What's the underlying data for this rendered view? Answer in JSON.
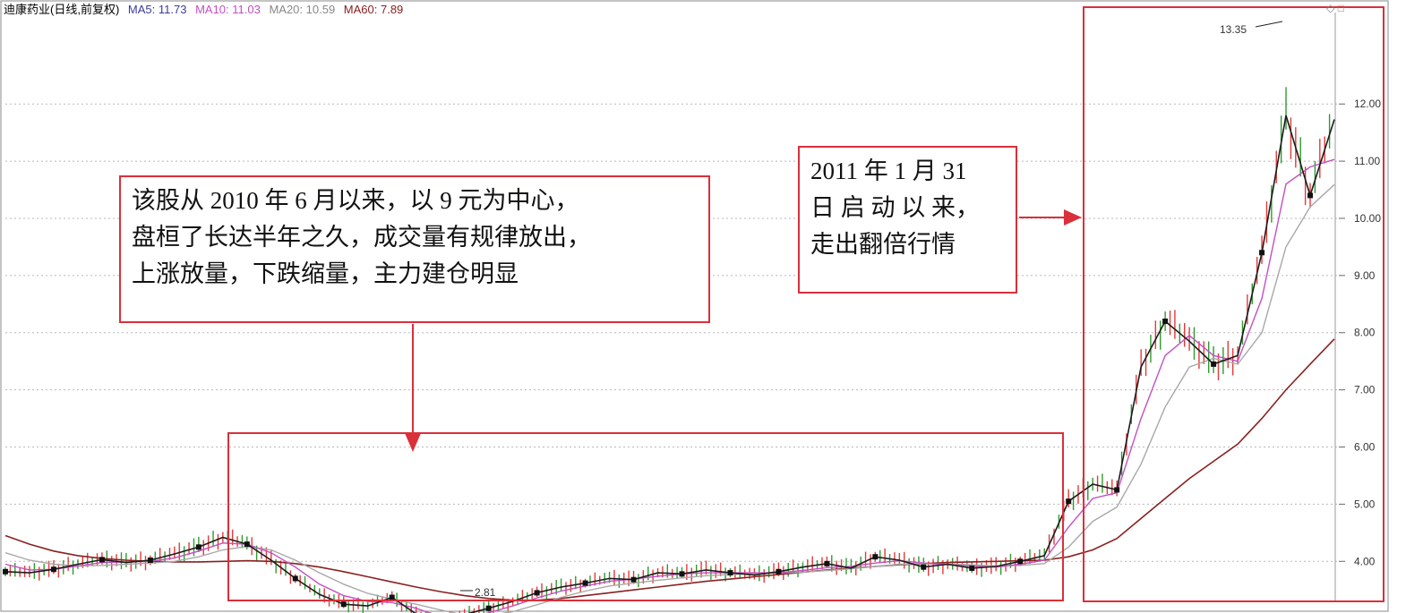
{
  "header": {
    "stock_title": "迪康药业(日线,前复权)",
    "ma5": "MA5: 11.73",
    "ma10": "MA10: 11.03",
    "ma20": "MA20: 10.59",
    "ma60": "MA60: 7.89"
  },
  "colors": {
    "ma5": "#1c1c1c",
    "ma10": "#c34fc3",
    "ma20": "#a8a8a8",
    "ma60": "#8a2020",
    "up": "#e23a3a",
    "down": "#2f9a2f",
    "annotation": "#d9303a"
  },
  "annotations": {
    "left_note": [
      "该股从 2010 年 6 月以来，以 9 元为中心，",
      "盘桓了长达半年之久，成交量有规律放出，",
      "上涨放量，下跌缩量，主力建仓明显"
    ],
    "right_note": [
      "2011 年 1 月 31",
      "日 启 动 以 来，",
      "走出翻倍行情"
    ]
  },
  "chart_data": {
    "type": "line",
    "title": "迪康药业(日线,前复权)",
    "ylim": [
      3.3,
      13.6
    ],
    "yticks": [
      "4.00",
      "5.00",
      "6.00",
      "7.00",
      "8.00",
      "9.00",
      "10.00",
      "11.00",
      "12.00"
    ],
    "grid": true,
    "high_label": "13.35",
    "low_label": "2.81",
    "ma_labels": [
      "MA5",
      "MA10",
      "MA20",
      "MA60"
    ],
    "ma5": [
      3.82,
      3.8,
      3.86,
      3.95,
      4.03,
      3.98,
      4.02,
      4.13,
      4.25,
      4.42,
      4.3,
      4.02,
      3.7,
      3.42,
      3.25,
      3.22,
      3.37,
      3.08,
      2.92,
      3.07,
      3.18,
      3.3,
      3.45,
      3.55,
      3.62,
      3.7,
      3.68,
      3.8,
      3.78,
      3.85,
      3.8,
      3.76,
      3.82,
      3.9,
      3.96,
      3.88,
      4.08,
      4.02,
      3.9,
      3.95,
      3.88,
      3.91,
      4.0,
      4.1,
      5.05,
      5.35,
      5.25,
      7.4,
      8.2,
      7.85,
      7.45,
      7.6,
      9.4,
      11.8,
      10.4,
      11.73
    ],
    "ma10": [
      3.95,
      3.85,
      3.86,
      3.92,
      3.98,
      3.99,
      4.0,
      4.06,
      4.18,
      4.32,
      4.3,
      4.15,
      3.9,
      3.6,
      3.4,
      3.3,
      3.28,
      3.18,
      3.03,
      3.01,
      3.1,
      3.22,
      3.36,
      3.48,
      3.57,
      3.65,
      3.69,
      3.74,
      3.78,
      3.8,
      3.8,
      3.8,
      3.8,
      3.84,
      3.89,
      3.91,
      3.97,
      4.01,
      3.97,
      3.94,
      3.92,
      3.9,
      3.95,
      4.02,
      4.6,
      5.1,
      5.2,
      6.5,
      7.6,
      7.95,
      7.6,
      7.5,
      8.6,
      10.6,
      10.9,
      11.03
    ],
    "ma20": [
      4.15,
      4.02,
      3.95,
      3.92,
      3.93,
      3.95,
      3.97,
      4.0,
      4.08,
      4.2,
      4.26,
      4.2,
      4.02,
      3.8,
      3.6,
      3.44,
      3.34,
      3.25,
      3.15,
      3.06,
      3.05,
      3.12,
      3.24,
      3.37,
      3.48,
      3.57,
      3.62,
      3.67,
      3.71,
      3.75,
      3.77,
      3.79,
      3.8,
      3.81,
      3.84,
      3.87,
      3.91,
      3.95,
      3.96,
      3.95,
      3.94,
      3.92,
      3.93,
      3.96,
      4.25,
      4.7,
      4.95,
      5.7,
      6.7,
      7.4,
      7.55,
      7.45,
      8.0,
      9.5,
      10.2,
      10.59
    ],
    "ma60": [
      4.45,
      4.3,
      4.18,
      4.1,
      4.05,
      4.02,
      4.0,
      3.99,
      3.99,
      4.0,
      4.01,
      4.0,
      3.96,
      3.9,
      3.82,
      3.73,
      3.64,
      3.55,
      3.47,
      3.4,
      3.35,
      3.32,
      3.32,
      3.35,
      3.4,
      3.45,
      3.5,
      3.55,
      3.6,
      3.65,
      3.69,
      3.73,
      3.77,
      3.81,
      3.85,
      3.88,
      3.91,
      3.94,
      3.96,
      3.98,
      3.99,
      4.0,
      4.01,
      4.02,
      4.08,
      4.2,
      4.4,
      4.75,
      5.1,
      5.45,
      5.75,
      6.05,
      6.5,
      7.0,
      7.45,
      7.89
    ]
  }
}
